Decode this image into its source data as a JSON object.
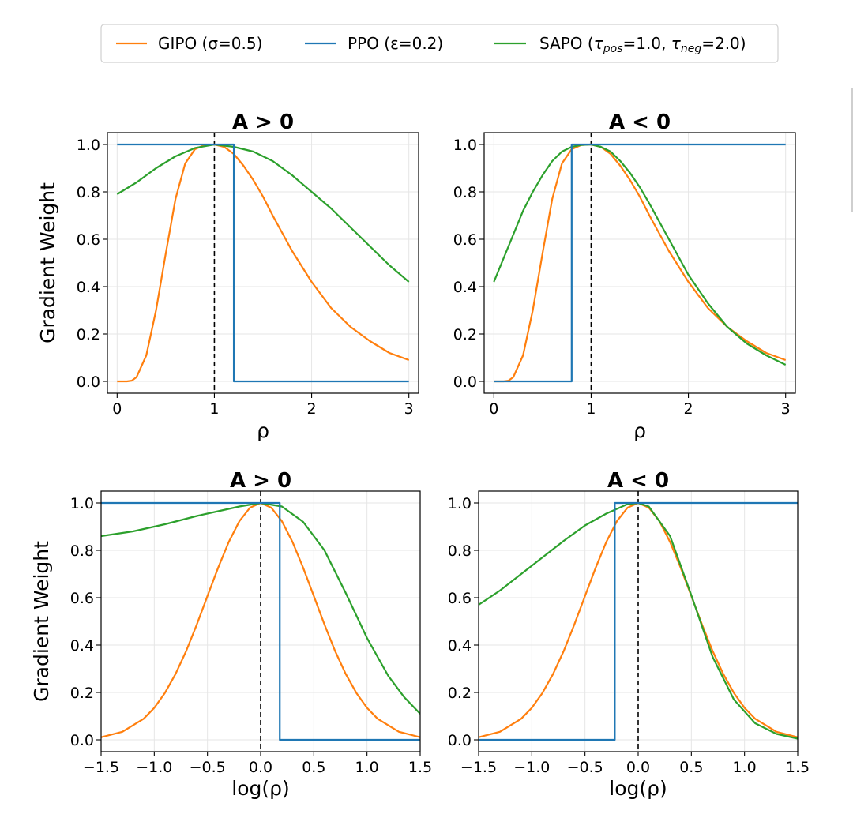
{
  "legend": {
    "placement": "top-center",
    "entries": [
      {
        "key": "gipo",
        "label": "GIPO (σ=0.5)",
        "color": "#ff7f0e"
      },
      {
        "key": "ppo",
        "label": "PPO (ε=0.2)",
        "color": "#1f77b4"
      },
      {
        "key": "sapo",
        "label": "SAPO (τpos=1.0, τneg=2.0)",
        "label_parts": [
          {
            "t": "SAPO ("
          },
          {
            "t": "τ",
            "i": true
          },
          {
            "t": "pos",
            "sub": true
          },
          {
            "t": "=1.0, "
          },
          {
            "t": "τ",
            "i": true
          },
          {
            "t": "neg",
            "sub": true
          },
          {
            "t": "=2.0)"
          }
        ],
        "color": "#2ca02c"
      }
    ]
  },
  "chart_data": [
    {
      "type": "line",
      "panel": "top-left",
      "title": "A > 0",
      "xlabel": "ρ",
      "ylabel": "Gradient Weight",
      "xlim": [
        -0.1,
        3.1
      ],
      "ylim": [
        -0.05,
        1.05
      ],
      "xticks": [
        0,
        1,
        2,
        3
      ],
      "xtick_labels": [
        "0",
        "1",
        "2",
        "3"
      ],
      "yticks": [
        0.0,
        0.2,
        0.4,
        0.6,
        0.8,
        1.0
      ],
      "ytick_labels": [
        "0.0",
        "0.2",
        "0.4",
        "0.6",
        "0.8",
        "1.0"
      ],
      "grid": true,
      "vline": {
        "x": 1,
        "style": "dashed",
        "color": "#000000"
      },
      "series": [
        {
          "name": "GIPO (σ=0.5)",
          "color": "#ff7f0e",
          "x": [
            0.0,
            0.1,
            0.15,
            0.2,
            0.3,
            0.4,
            0.5,
            0.6,
            0.7,
            0.8,
            0.9,
            1.0,
            1.1,
            1.2,
            1.3,
            1.4,
            1.5,
            1.6,
            1.8,
            2.0,
            2.2,
            2.4,
            2.6,
            2.8,
            3.0
          ],
          "y": [
            0.0,
            0.0,
            0.003,
            0.018,
            0.11,
            0.3,
            0.54,
            0.77,
            0.92,
            0.98,
            0.998,
            1.0,
            0.99,
            0.96,
            0.91,
            0.85,
            0.78,
            0.7,
            0.55,
            0.42,
            0.31,
            0.23,
            0.17,
            0.12,
            0.09
          ]
        },
        {
          "name": "PPO (ε=0.2)",
          "color": "#1f77b4",
          "x": [
            0.0,
            1.2,
            1.2,
            3.0
          ],
          "y": [
            1.0,
            1.0,
            0.0,
            0.0
          ]
        },
        {
          "name": "SAPO (τpos=1.0, τneg=2.0)",
          "color": "#2ca02c",
          "x": [
            0.0,
            0.2,
            0.4,
            0.6,
            0.8,
            1.0,
            1.2,
            1.4,
            1.6,
            1.8,
            2.0,
            2.2,
            2.4,
            2.6,
            2.8,
            3.0
          ],
          "y": [
            0.79,
            0.84,
            0.9,
            0.95,
            0.985,
            1.0,
            0.99,
            0.97,
            0.93,
            0.87,
            0.8,
            0.73,
            0.65,
            0.57,
            0.49,
            0.42
          ]
        }
      ]
    },
    {
      "type": "line",
      "panel": "top-right",
      "title": "A < 0",
      "xlabel": "ρ",
      "ylabel": "",
      "xlim": [
        -0.1,
        3.1
      ],
      "ylim": [
        -0.05,
        1.05
      ],
      "xticks": [
        0,
        1,
        2,
        3
      ],
      "xtick_labels": [
        "0",
        "1",
        "2",
        "3"
      ],
      "yticks": [
        0.0,
        0.2,
        0.4,
        0.6,
        0.8,
        1.0
      ],
      "ytick_labels": [
        "0.0",
        "0.2",
        "0.4",
        "0.6",
        "0.8",
        "1.0"
      ],
      "grid": true,
      "vline": {
        "x": 1,
        "style": "dashed",
        "color": "#000000"
      },
      "series": [
        {
          "name": "GIPO (σ=0.5)",
          "color": "#ff7f0e",
          "x": [
            0.0,
            0.1,
            0.15,
            0.2,
            0.3,
            0.4,
            0.5,
            0.6,
            0.7,
            0.8,
            0.9,
            1.0,
            1.1,
            1.2,
            1.3,
            1.4,
            1.5,
            1.6,
            1.8,
            2.0,
            2.2,
            2.4,
            2.6,
            2.8,
            3.0
          ],
          "y": [
            0.0,
            0.0,
            0.003,
            0.018,
            0.11,
            0.3,
            0.54,
            0.77,
            0.92,
            0.98,
            0.998,
            1.0,
            0.99,
            0.96,
            0.91,
            0.85,
            0.78,
            0.7,
            0.55,
            0.42,
            0.31,
            0.23,
            0.17,
            0.12,
            0.09
          ]
        },
        {
          "name": "PPO (ε=0.2)",
          "color": "#1f77b4",
          "x": [
            0.0,
            0.8,
            0.8,
            3.0
          ],
          "y": [
            0.0,
            0.0,
            1.0,
            1.0
          ]
        },
        {
          "name": "SAPO (τpos=1.0, τneg=2.0)",
          "color": "#2ca02c",
          "x": [
            0.0,
            0.1,
            0.2,
            0.3,
            0.4,
            0.5,
            0.6,
            0.7,
            0.8,
            0.9,
            1.0,
            1.1,
            1.2,
            1.3,
            1.4,
            1.5,
            1.6,
            1.8,
            2.0,
            2.2,
            2.4,
            2.6,
            2.8,
            3.0
          ],
          "y": [
            0.42,
            0.52,
            0.62,
            0.72,
            0.8,
            0.87,
            0.93,
            0.97,
            0.99,
            0.998,
            1.0,
            0.99,
            0.97,
            0.93,
            0.88,
            0.82,
            0.75,
            0.6,
            0.45,
            0.33,
            0.23,
            0.16,
            0.11,
            0.07
          ]
        }
      ]
    },
    {
      "type": "line",
      "panel": "bottom-left",
      "title": "A > 0",
      "xlabel": "log(ρ)",
      "ylabel": "Gradient Weight",
      "xlim": [
        -1.5,
        1.5
      ],
      "ylim": [
        -0.05,
        1.05
      ],
      "xticks": [
        -1.5,
        -1.0,
        -0.5,
        0.0,
        0.5,
        1.0,
        1.5
      ],
      "xtick_labels": [
        "−1.5",
        "−1.0",
        "−0.5",
        "0.0",
        "0.5",
        "1.0",
        "1.5"
      ],
      "yticks": [
        0.0,
        0.2,
        0.4,
        0.6,
        0.8,
        1.0
      ],
      "ytick_labels": [
        "0.0",
        "0.2",
        "0.4",
        "0.6",
        "0.8",
        "1.0"
      ],
      "grid": true,
      "vline": {
        "x": 0,
        "style": "dashed",
        "color": "#000000"
      },
      "series": [
        {
          "name": "GIPO (σ=0.5)",
          "color": "#ff7f0e",
          "x": [
            -1.5,
            -1.3,
            -1.1,
            -1.0,
            -0.9,
            -0.8,
            -0.7,
            -0.6,
            -0.5,
            -0.4,
            -0.3,
            -0.2,
            -0.1,
            0.0,
            0.1,
            0.2,
            0.3,
            0.4,
            0.5,
            0.6,
            0.7,
            0.8,
            0.9,
            1.0,
            1.1,
            1.3,
            1.5
          ],
          "y": [
            0.011,
            0.034,
            0.089,
            0.135,
            0.198,
            0.278,
            0.375,
            0.487,
            0.607,
            0.726,
            0.835,
            0.923,
            0.98,
            1.0,
            0.98,
            0.923,
            0.835,
            0.726,
            0.607,
            0.487,
            0.375,
            0.278,
            0.198,
            0.135,
            0.089,
            0.034,
            0.011
          ]
        },
        {
          "name": "PPO (ε=0.2)",
          "color": "#1f77b4",
          "x": [
            -1.5,
            0.18,
            0.18,
            1.5
          ],
          "y": [
            1.0,
            1.0,
            0.0,
            0.0
          ]
        },
        {
          "name": "SAPO (τpos=1.0, τneg=2.0)",
          "color": "#2ca02c",
          "x": [
            -1.5,
            -1.2,
            -0.9,
            -0.6,
            -0.4,
            -0.2,
            0.0,
            0.2,
            0.4,
            0.6,
            0.8,
            1.0,
            1.2,
            1.35,
            1.5
          ],
          "y": [
            0.86,
            0.88,
            0.91,
            0.945,
            0.965,
            0.985,
            1.0,
            0.985,
            0.92,
            0.8,
            0.62,
            0.43,
            0.27,
            0.18,
            0.11
          ]
        }
      ]
    },
    {
      "type": "line",
      "panel": "bottom-right",
      "title": "A < 0",
      "xlabel": "log(ρ)",
      "ylabel": "",
      "xlim": [
        -1.5,
        1.5
      ],
      "ylim": [
        -0.05,
        1.05
      ],
      "xticks": [
        -1.5,
        -1.0,
        -0.5,
        0.0,
        0.5,
        1.0,
        1.5
      ],
      "xtick_labels": [
        "−1.5",
        "−1.0",
        "−0.5",
        "0.0",
        "0.5",
        "1.0",
        "1.5"
      ],
      "yticks": [
        0.0,
        0.2,
        0.4,
        0.6,
        0.8,
        1.0
      ],
      "ytick_labels": [
        "0.0",
        "0.2",
        "0.4",
        "0.6",
        "0.8",
        "1.0"
      ],
      "grid": true,
      "vline": {
        "x": 0,
        "style": "dashed",
        "color": "#000000"
      },
      "series": [
        {
          "name": "GIPO (σ=0.5)",
          "color": "#ff7f0e",
          "x": [
            -1.5,
            -1.3,
            -1.1,
            -1.0,
            -0.9,
            -0.8,
            -0.7,
            -0.6,
            -0.5,
            -0.4,
            -0.3,
            -0.2,
            -0.1,
            0.0,
            0.1,
            0.2,
            0.3,
            0.4,
            0.5,
            0.6,
            0.7,
            0.8,
            0.9,
            1.0,
            1.1,
            1.3,
            1.5
          ],
          "y": [
            0.011,
            0.034,
            0.089,
            0.135,
            0.198,
            0.278,
            0.375,
            0.487,
            0.607,
            0.726,
            0.835,
            0.923,
            0.98,
            1.0,
            0.98,
            0.923,
            0.835,
            0.726,
            0.607,
            0.487,
            0.375,
            0.278,
            0.198,
            0.135,
            0.089,
            0.034,
            0.011
          ]
        },
        {
          "name": "PPO (ε=0.2)",
          "color": "#1f77b4",
          "x": [
            -1.5,
            -0.22,
            -0.22,
            1.5
          ],
          "y": [
            0.0,
            0.0,
            1.0,
            1.0
          ]
        },
        {
          "name": "SAPO (τpos=1.0, τneg=2.0)",
          "color": "#2ca02c",
          "x": [
            -1.5,
            -1.3,
            -1.1,
            -0.9,
            -0.7,
            -0.5,
            -0.3,
            -0.1,
            0.0,
            0.1,
            0.3,
            0.5,
            0.7,
            0.9,
            1.1,
            1.3,
            1.5
          ],
          "y": [
            0.57,
            0.63,
            0.7,
            0.77,
            0.84,
            0.905,
            0.955,
            0.995,
            1.0,
            0.985,
            0.86,
            0.61,
            0.35,
            0.17,
            0.07,
            0.025,
            0.005
          ]
        }
      ]
    }
  ]
}
